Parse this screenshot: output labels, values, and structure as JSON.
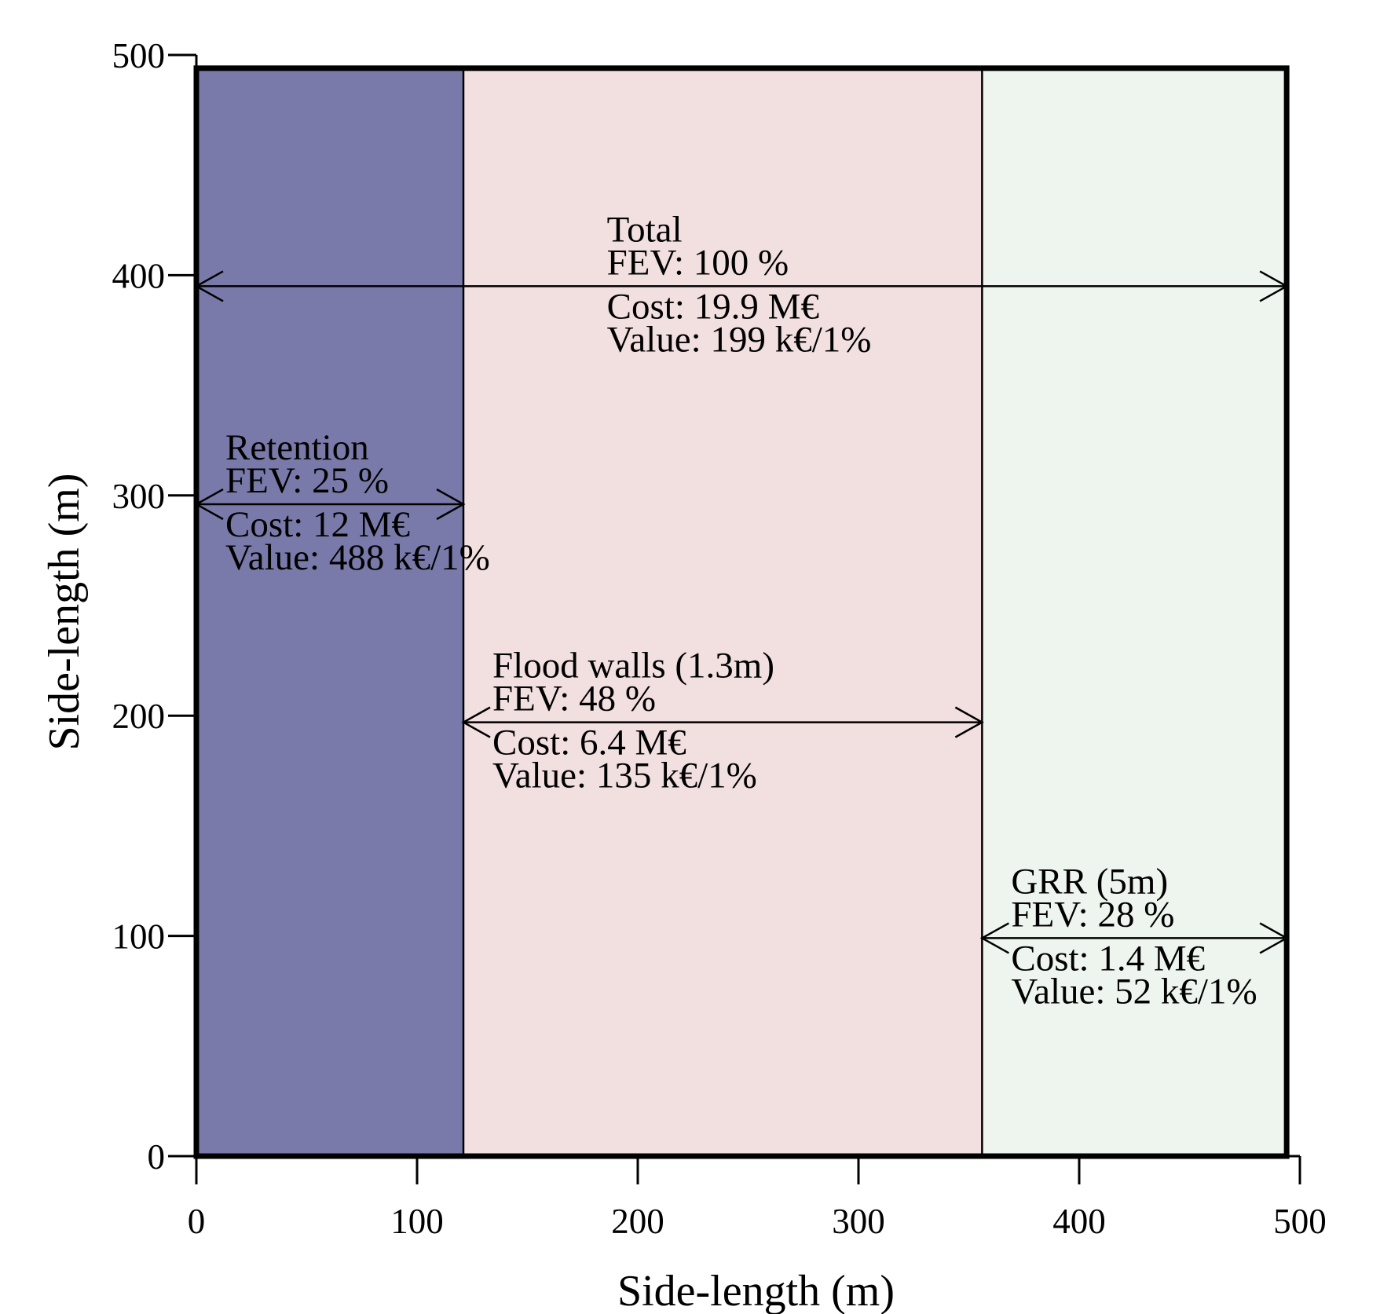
{
  "chart_data": {
    "type": "area",
    "title": "",
    "xlabel": "Side-length (m)",
    "ylabel": "Side-length (m)",
    "xlim": [
      0,
      500
    ],
    "ylim": [
      0,
      500
    ],
    "x_ticks": [
      0,
      100,
      200,
      300,
      400,
      500
    ],
    "y_ticks": [
      0,
      100,
      200,
      300,
      400,
      500
    ],
    "grid": false,
    "outer_square_side": 494,
    "regions": [
      {
        "name": "Retention",
        "x_start": 0,
        "x_end": 121,
        "color": "#7a7aaa"
      },
      {
        "name": "Flood walls",
        "x_start": 121,
        "x_end": 356,
        "color": "#f2dfe0"
      },
      {
        "name": "GRR",
        "x_start": 356,
        "x_end": 494,
        "color": "#eef4ee"
      }
    ],
    "annotations": [
      {
        "key": "total",
        "x_from": 0,
        "x_to": 494,
        "y": 395,
        "lines": [
          "Total",
          "FEV: 100 %",
          "Cost: 19.9 M€",
          "Value: 199 k€/1%"
        ]
      },
      {
        "key": "retention",
        "x_from": 0,
        "x_to": 121,
        "y": 296,
        "lines": [
          "Retention",
          "FEV: 25 %",
          "Cost: 12 M€",
          "Value: 488 k€/1%"
        ]
      },
      {
        "key": "flood_walls",
        "x_from": 121,
        "x_to": 356,
        "y": 197,
        "lines": [
          "Flood walls (1.3m)",
          "FEV: 48 %",
          "Cost: 6.4 M€",
          "Value: 135 k€/1%"
        ]
      },
      {
        "key": "grr",
        "x_from": 356,
        "x_to": 494,
        "y": 99,
        "lines": [
          "GRR (5m)",
          "FEV: 28 %",
          "Cost: 1.4 M€",
          "Value: 52 k€/1%"
        ]
      }
    ]
  }
}
